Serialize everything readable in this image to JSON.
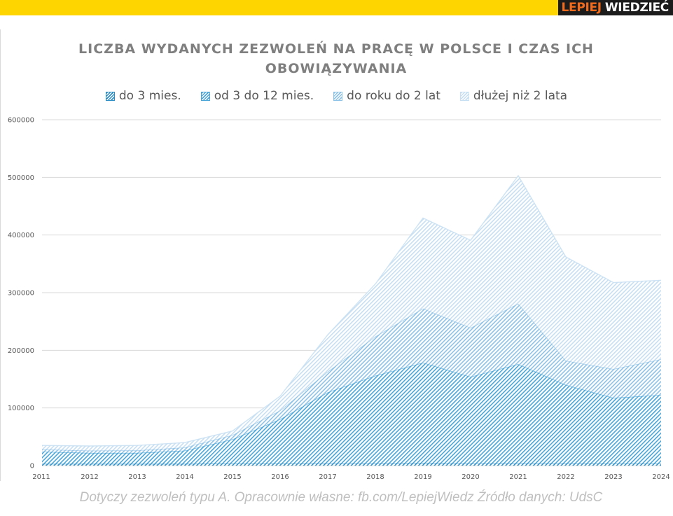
{
  "brand": {
    "part1": "LEPIEJ",
    "part2": "WIEDZIEĆ",
    "color_part1": "#f26a1b",
    "color_bar": "#ffd500"
  },
  "footer": "Dotyczy zezwoleń typu A. Opracownie własne: fb.com/LepiejWiedz  Źródło danych: UdsC",
  "chart_data": {
    "type": "area",
    "stacked": true,
    "title": "LICZBA WYDANYCH ZEZWOLEŃ NA PRACĘ W POLSCE I CZAS ICH OBOWIĄZYWANIA",
    "xlabel": "",
    "ylabel": "",
    "ylim": [
      0,
      600000
    ],
    "yticks": [
      "0",
      "100000",
      "200000",
      "300000",
      "400000",
      "500000",
      "600000"
    ],
    "grid": true,
    "legend_position": "top",
    "categories": [
      "2011",
      "2012",
      "2013",
      "2014",
      "2015",
      "2016",
      "2017",
      "2018",
      "2019",
      "2020",
      "2021",
      "2022",
      "2023",
      "2024"
    ],
    "series": [
      {
        "name": "do 3 mies.",
        "color": "#2e8fc6",
        "values": [
          3000,
          3000,
          3000,
          3000,
          3500,
          3500,
          4000,
          4000,
          4500,
          4000,
          4000,
          4000,
          3500,
          3500
        ]
      },
      {
        "name": "od 3 do 12 mies.",
        "color": "#4aa6d8",
        "values": [
          21000,
          19000,
          19000,
          23000,
          42000,
          77000,
          123000,
          152000,
          174000,
          150000,
          172000,
          136000,
          114000,
          119000
        ]
      },
      {
        "name": "do roku do 2 lat",
        "color": "#8ec2e6",
        "values": [
          4000,
          4000,
          4500,
          5500,
          7500,
          15000,
          36000,
          68000,
          94000,
          85000,
          105000,
          42000,
          50000,
          62000
        ]
      },
      {
        "name": "dłużej niż 2 lata",
        "color": "#c7dff2",
        "values": [
          7000,
          8000,
          8500,
          8500,
          7000,
          25000,
          64000,
          91000,
          157000,
          152000,
          222000,
          180000,
          150000,
          137000
        ]
      }
    ]
  }
}
